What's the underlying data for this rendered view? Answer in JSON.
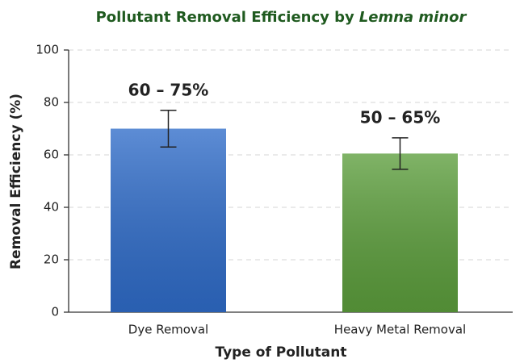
{
  "chart_data": {
    "type": "bar",
    "title": {
      "text": "Pollutant Removal Efficiency by",
      "species": "Lemna minor"
    },
    "x_label": "Type of Pollutant",
    "y_label": "Removal Efficiency (%)",
    "categories": [
      "Dye Removal",
      "Heavy Metal Removal"
    ],
    "values": [
      70,
      60.5
    ],
    "errors": [
      7,
      6
    ],
    "colors": [
      "#2f6cc9",
      "#5c9e3c"
    ],
    "annotations": [
      "60 – 75%",
      "50 – 65%"
    ],
    "ylim": [
      0,
      100
    ],
    "yticks": [
      0,
      20,
      40,
      60,
      80,
      100
    ],
    "grid": true
  }
}
